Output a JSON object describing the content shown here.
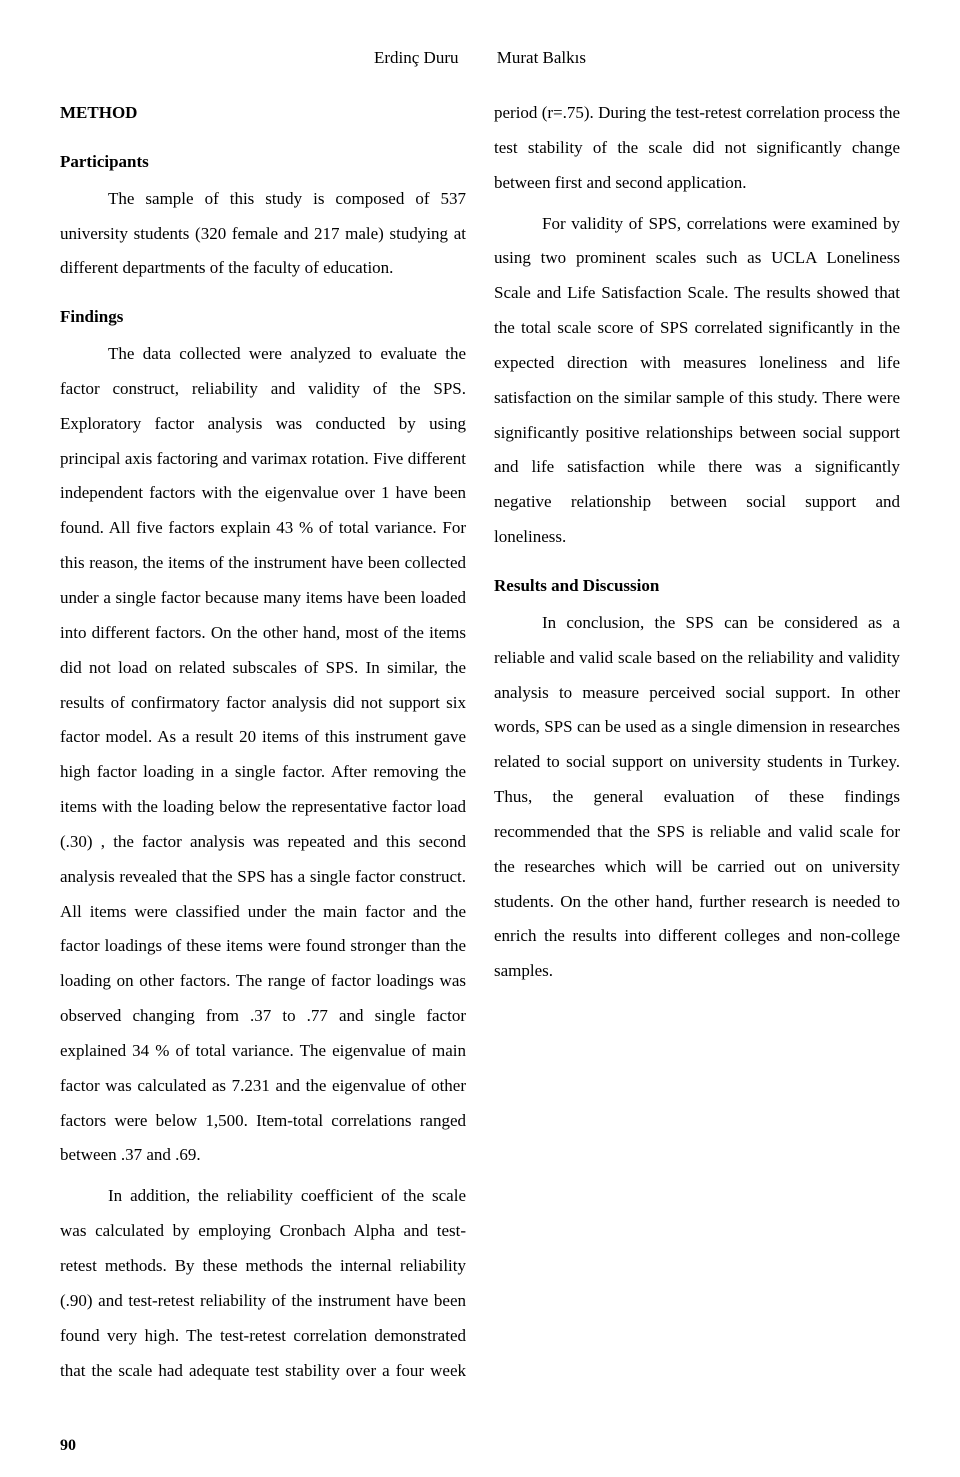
{
  "authors": {
    "a1": "Erdinç Duru",
    "a2": "Murat Balkıs"
  },
  "h_method": "METHOD",
  "h_participants": "Participants",
  "p_participants": "The sample of this study is composed of 537 university students (320 female and 217 male) studying at different departments of the faculty of education.",
  "h_findings": "Findings",
  "p_findings_1": "The data collected were analyzed to evaluate the factor construct, reliability and validity of the SPS. Exploratory factor analysis was conducted by using principal axis factoring and varimax rotation. Five different independent factors with the eigenvalue over 1 have been found. All five factors explain 43 % of total variance. For this reason, the items of the instrument have been collected under a single factor because many items have been loaded into different factors. On the other hand, most of the items did not load on related subscales of SPS.  In similar, the results of confirmatory factor analysis did not support six factor model.  As a result  20 items of this instrument gave high factor loading in a single factor. After removing the items with the loading below the representative factor load (.30) , the factor analysis was repeated and this second analysis revealed that the SPS has a single factor construct. All items were classified under the main factor and the factor loadings of these items were found stronger than the loading on other factors. The range of factor loadings was observed changing from .37 to .77 and single factor explained 34 % of total variance. The eigenvalue of main factor was calculated as 7.231 and the eigenvalue of other factors were below 1,500. Item-total correlations ranged between .37 and .69.",
  "p_findings_2": "In addition, the reliability coefficient of the scale was calculated by employing Cronbach Alpha and test-retest methods. By these methods the internal reliability (.90) and test-retest reliability of the instrument have been found very high. The test-retest correlation demonstrated that the scale had adequate test stability over a four week period (r=.75). During the test-retest correlation process the test stability of the scale did not significantly change between first and second application.",
  "p_findings_3": "For validity of SPS, correlations were examined by using two prominent scales such as UCLA Loneliness Scale and Life Satisfaction Scale. The results showed that the total scale score of SPS correlated significantly in the expected direction with measures loneliness and  life satisfaction on the similar sample of this study. There were significantly positive relationships between social support and life satisfaction while there was a significantly negative relationship between social support and loneliness.",
  "h_results": "Results and Discussion",
  "p_results": "In conclusion, the SPS can be considered as a reliable and valid scale based on the reliability and validity analysis to measure perceived social support. In other words,  SPS can be used as a single dimension in researches related to social support on university students in Turkey. Thus, the general evaluation of these findings recommended that the SPS is reliable and valid scale for the researches which will be carried out on university students. On the other hand, further research is needed to enrich the results into different colleges and non-college samples.",
  "page_number": "90"
}
